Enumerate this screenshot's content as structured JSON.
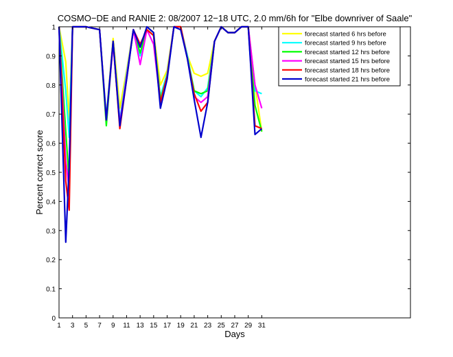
{
  "chart_data": {
    "type": "line",
    "title": "COSMO−DE and RANIE 2: 08/2007 12−18 UTC, 2.0 mm/6h for \"Elbe downriver of Saale\"",
    "xlabel": "Days",
    "ylabel": "Percent correct score",
    "xlim": [
      1,
      53
    ],
    "ylim": [
      0,
      1
    ],
    "x_ticks": [
      1,
      3,
      5,
      7,
      9,
      11,
      13,
      15,
      17,
      19,
      21,
      23,
      25,
      27,
      29,
      31
    ],
    "y_ticks": [
      0,
      0.1,
      0.2,
      0.3,
      0.4,
      0.5,
      0.6,
      0.7,
      0.8,
      0.9,
      1
    ],
    "y_tick_labels": [
      "0",
      "0.1",
      "0.2",
      "0.3",
      "0.4",
      "0.5",
      "0.6",
      "0.7",
      "0.8",
      "0.9",
      "1"
    ],
    "grid": false,
    "legend_position": "top-right",
    "x": [
      1,
      2,
      2.5,
      3,
      5,
      7,
      8,
      9,
      10,
      11,
      12,
      13,
      14,
      15,
      16,
      17,
      18,
      19,
      20,
      21,
      22,
      23,
      24,
      25,
      26,
      27,
      28,
      29,
      30,
      31
    ],
    "series": [
      {
        "name": "forecast started 6 hrs before",
        "color": "#ffff00",
        "values": [
          1.0,
          0.88,
          0.68,
          1.0,
          1.0,
          0.99,
          0.69,
          0.96,
          0.72,
          0.85,
          0.99,
          0.93,
          1.0,
          0.98,
          0.8,
          0.85,
          1.0,
          1.0,
          0.9,
          0.84,
          0.83,
          0.84,
          0.95,
          1.0,
          0.98,
          0.98,
          1.0,
          1.0,
          0.8,
          0.64
        ]
      },
      {
        "name": "forecast started 9 hrs before",
        "color": "#00ffff",
        "values": [
          1.0,
          0.78,
          0.62,
          1.0,
          1.0,
          0.99,
          0.69,
          0.95,
          0.68,
          0.84,
          0.99,
          0.9,
          0.99,
          0.97,
          0.76,
          0.84,
          1.0,
          1.0,
          0.9,
          0.78,
          0.76,
          0.79,
          0.95,
          1.0,
          0.98,
          0.98,
          1.0,
          1.0,
          0.78,
          0.77
        ]
      },
      {
        "name": "forecast started 12 hrs before",
        "color": "#00ff00",
        "values": [
          1.0,
          0.64,
          0.47,
          1.0,
          1.0,
          0.99,
          0.66,
          0.95,
          0.66,
          0.83,
          0.99,
          0.91,
          0.99,
          0.97,
          0.75,
          0.83,
          1.0,
          1.0,
          0.89,
          0.78,
          0.77,
          0.78,
          0.95,
          1.0,
          0.98,
          0.98,
          1.0,
          1.0,
          0.73,
          0.64
        ]
      },
      {
        "name": "forecast started 15 hrs before",
        "color": "#ff00ff",
        "values": [
          1.0,
          0.54,
          0.44,
          1.0,
          1.0,
          0.99,
          0.68,
          0.94,
          0.67,
          0.83,
          0.99,
          0.87,
          0.99,
          0.94,
          0.74,
          0.83,
          1.0,
          1.0,
          0.89,
          0.76,
          0.74,
          0.76,
          0.95,
          1.0,
          0.98,
          0.98,
          1.0,
          1.0,
          0.8,
          0.72
        ]
      },
      {
        "name": "forecast started 18 hrs before",
        "color": "#ff0000",
        "values": [
          1.0,
          0.47,
          0.37,
          1.0,
          1.0,
          0.99,
          0.68,
          0.95,
          0.65,
          0.82,
          0.99,
          0.94,
          0.99,
          0.97,
          0.74,
          0.83,
          1.0,
          1.0,
          0.89,
          0.77,
          0.71,
          0.74,
          0.95,
          1.0,
          0.98,
          0.98,
          1.0,
          1.0,
          0.66,
          0.65
        ]
      },
      {
        "name": "forecast started 21 hrs before",
        "color": "#0000cd",
        "values": [
          1.0,
          0.26,
          0.52,
          1.0,
          1.0,
          0.99,
          0.68,
          0.95,
          0.66,
          0.82,
          0.99,
          0.93,
          1.0,
          0.98,
          0.72,
          0.82,
          1.0,
          0.99,
          0.89,
          0.75,
          0.62,
          0.74,
          0.95,
          1.0,
          0.98,
          0.98,
          1.0,
          1.0,
          0.63,
          0.65
        ]
      }
    ]
  }
}
